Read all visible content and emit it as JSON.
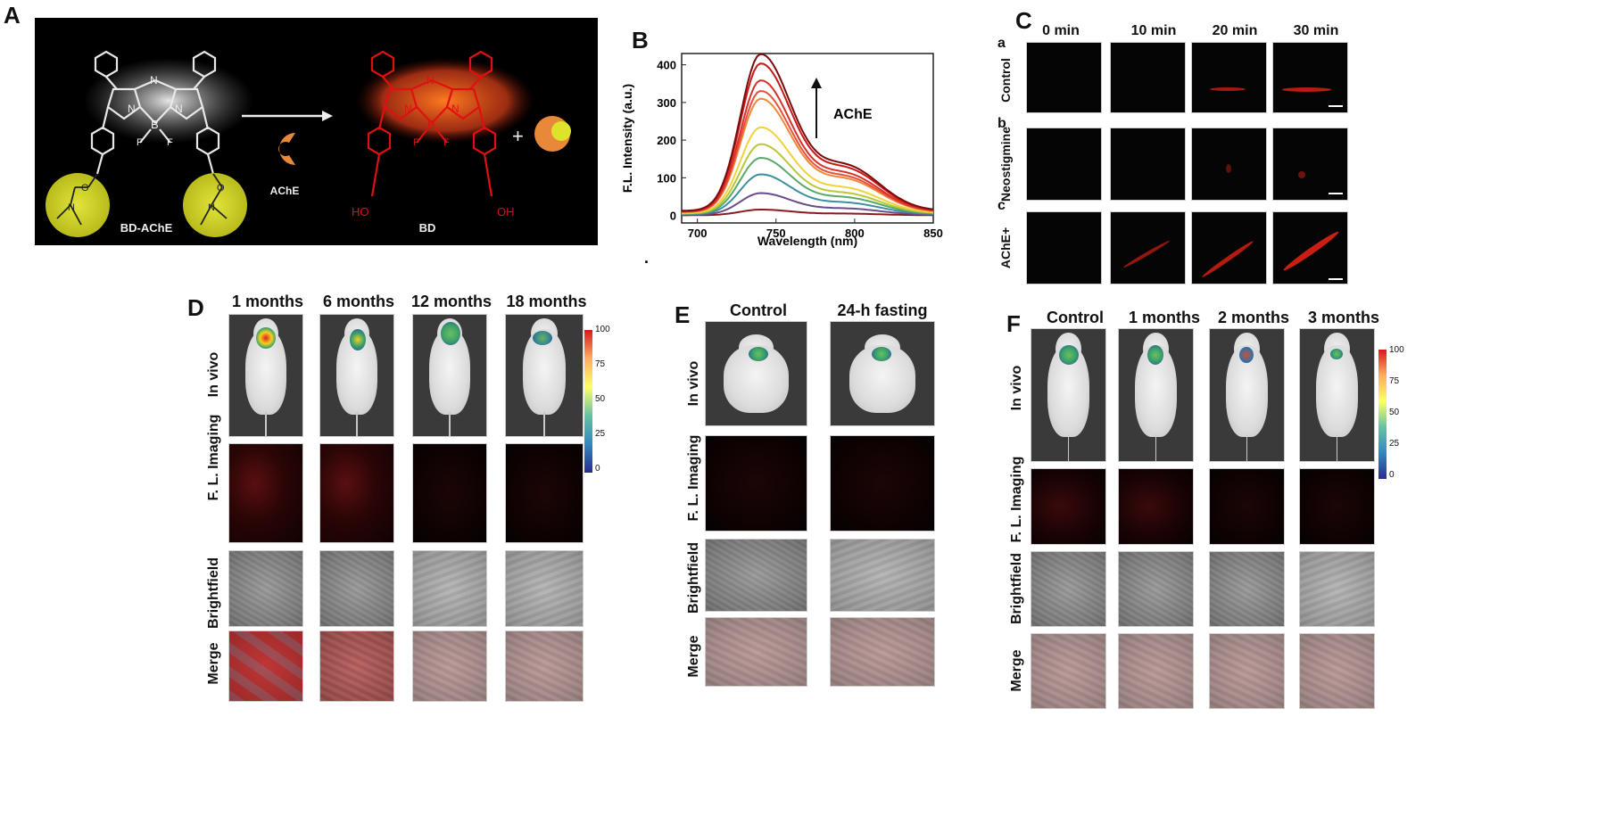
{
  "panel_letters": {
    "a": "A",
    "b": "B",
    "c": "C",
    "d": "D",
    "e": "E",
    "f": "F"
  },
  "panel_a": {
    "probe_label": "BD-AChE",
    "enzyme_label": "AChE",
    "product_label": "BD",
    "plus": "+",
    "atom_B": "B",
    "atom_F": "F",
    "atom_N": "N",
    "atom_O": "O",
    "hydroxyl": "HO",
    "hydroxyl_r": "OH",
    "colors": {
      "probe": "#e8e8e8",
      "product": "#e01010",
      "yellow": "#cfd12a",
      "enzyme": "#e8893a"
    }
  },
  "panel_b": {
    "ylabel": "F.L. Intensity (a.u.)",
    "xlabel": "Wavelength (nm)",
    "arrow_label": "AChE",
    "dot": "."
  },
  "chart_data": {
    "type": "line",
    "title": "",
    "xlabel": "Wavelength (nm)",
    "ylabel": "F.L. Intensity (a.u.)",
    "xlim": [
      690,
      850
    ],
    "ylim": [
      -20,
      430
    ],
    "xticks": [
      700,
      750,
      800,
      850
    ],
    "yticks": [
      0,
      100,
      200,
      300,
      400
    ],
    "peak_x": 740,
    "series": [
      {
        "color": "#8b1a1a",
        "values_peak": 15
      },
      {
        "color": "#6b4c8a",
        "values_peak": 57
      },
      {
        "color": "#3b8fa0",
        "values_peak": 105
      },
      {
        "color": "#5aa86a",
        "values_peak": 147
      },
      {
        "color": "#b8c83a",
        "values_peak": 182
      },
      {
        "color": "#f0d23a",
        "values_peak": 225
      },
      {
        "color": "#f0873a",
        "values_peak": 298
      },
      {
        "color": "#e8503a",
        "values_peak": 318
      },
      {
        "color": "#d8302a",
        "values_peak": 345
      },
      {
        "color": "#c81818",
        "values_peak": 388
      },
      {
        "color": "#7a0c0c",
        "values_peak": 412
      }
    ]
  },
  "panel_c": {
    "cols": [
      "0 min",
      "10 min",
      "20 min",
      "30 min"
    ],
    "rows": [
      {
        "letter": "a",
        "label": "Control"
      },
      {
        "letter": "b",
        "label": "Neostigmine"
      },
      {
        "letter": "c",
        "label": "AChE+"
      }
    ]
  },
  "panel_d": {
    "cols": [
      "1 months",
      "6 months",
      "12 months",
      "18 months"
    ],
    "rows": [
      "In vivo",
      "F. L. Imaging",
      "Brightfield",
      "Merge"
    ],
    "colorbar": [
      "100",
      "75",
      "50",
      "25",
      "0"
    ]
  },
  "panel_e": {
    "cols": [
      "Control",
      "24-h fasting"
    ],
    "rows": [
      "In vivo",
      "F. L. Imaging",
      "Brightfield",
      "Merge"
    ]
  },
  "panel_f": {
    "cols": [
      "Control",
      "1 months",
      "2 months",
      "3 months"
    ],
    "rows": [
      "In vivo",
      "F. L. Imaging",
      "Brightfield",
      "Merge"
    ],
    "colorbar": [
      "100",
      "75",
      "50",
      "25",
      "0"
    ]
  }
}
